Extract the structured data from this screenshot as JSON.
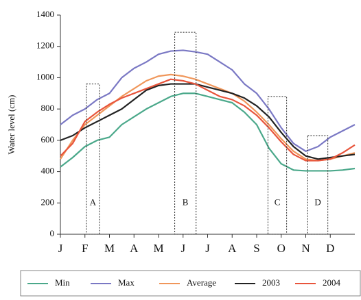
{
  "chart_data": {
    "type": "line",
    "y_label": "Water level (cm)",
    "x": [
      0,
      0.5,
      1,
      1.5,
      2,
      2.5,
      3,
      3.5,
      4,
      4.5,
      5,
      5.5,
      6,
      6.5,
      7,
      7.5,
      8,
      8.5,
      9,
      9.5,
      10,
      10.5,
      11,
      11.5,
      12
    ],
    "xlim": [
      0,
      12
    ],
    "xticks": [
      {
        "value": 0,
        "label": "J"
      },
      {
        "value": 1,
        "label": "F"
      },
      {
        "value": 2,
        "label": "M"
      },
      {
        "value": 3,
        "label": "A"
      },
      {
        "value": 4,
        "label": "M"
      },
      {
        "value": 5,
        "label": "J"
      },
      {
        "value": 6,
        "label": "J"
      },
      {
        "value": 7,
        "label": "A"
      },
      {
        "value": 8,
        "label": "S"
      },
      {
        "value": 9,
        "label": "O"
      },
      {
        "value": 10,
        "label": "N"
      },
      {
        "value": 11,
        "label": "D"
      }
    ],
    "ylim": [
      0,
      1400
    ],
    "yticks": [
      0,
      200,
      400,
      600,
      800,
      1000,
      1200,
      1400
    ],
    "series": [
      {
        "name": "Min",
        "color": "#4aa88a",
        "values": [
          430,
          490,
          560,
          600,
          620,
          700,
          750,
          800,
          840,
          880,
          900,
          900,
          880,
          860,
          840,
          780,
          700,
          550,
          450,
          410,
          405,
          405,
          405,
          410,
          420
        ]
      },
      {
        "name": "Max",
        "color": "#7a78c4",
        "values": [
          700,
          760,
          800,
          860,
          900,
          1000,
          1060,
          1100,
          1150,
          1170,
          1175,
          1165,
          1150,
          1100,
          1050,
          960,
          900,
          800,
          680,
          580,
          530,
          560,
          620,
          660,
          700
        ]
      },
      {
        "name": "Average",
        "color": "#f0965a",
        "values": [
          480,
          600,
          700,
          760,
          820,
          880,
          930,
          980,
          1010,
          1020,
          1010,
          990,
          960,
          930,
          900,
          850,
          780,
          700,
          610,
          530,
          480,
          470,
          480,
          500,
          520
        ]
      },
      {
        "name": "2003",
        "color": "#222222",
        "values": [
          600,
          630,
          680,
          720,
          760,
          800,
          860,
          920,
          950,
          960,
          960,
          960,
          940,
          920,
          900,
          870,
          820,
          750,
          650,
          560,
          500,
          480,
          490,
          500,
          510
        ]
      },
      {
        "name": "2004",
        "color": "#e8553c",
        "values": [
          500,
          580,
          720,
          780,
          830,
          870,
          900,
          930,
          960,
          990,
          980,
          960,
          920,
          880,
          860,
          820,
          760,
          680,
          590,
          510,
          470,
          470,
          480,
          520,
          570
        ]
      }
    ],
    "annotations": [
      {
        "label": "A",
        "x0": 1.06,
        "x1": 1.59,
        "top": 960
      },
      {
        "label": "B",
        "x0": 4.66,
        "x1": 5.53,
        "top": 1290
      },
      {
        "label": "C",
        "x0": 8.46,
        "x1": 9.22,
        "top": 880
      },
      {
        "label": "D",
        "x0": 10.08,
        "x1": 10.9,
        "top": 630
      }
    ]
  }
}
